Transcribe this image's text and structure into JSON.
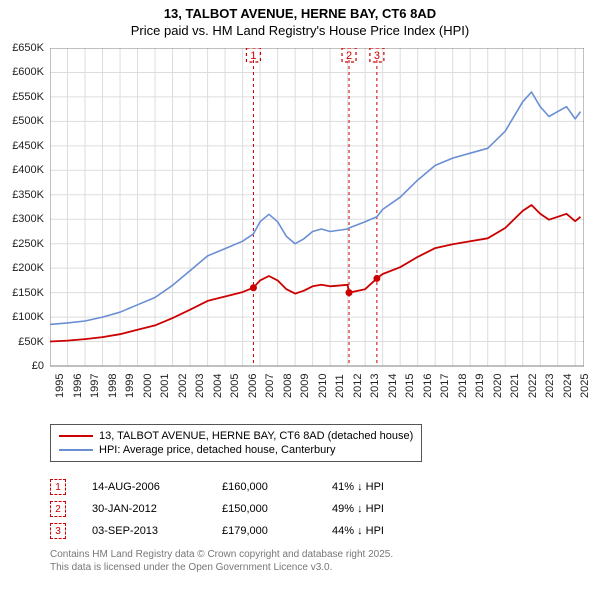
{
  "title": {
    "line1": "13, TALBOT AVENUE, HERNE BAY, CT6 8AD",
    "line2": "Price paid vs. HM Land Registry's House Price Index (HPI)"
  },
  "chart": {
    "type": "line",
    "background_color": "#ffffff",
    "grid_color": "#dddddd",
    "axis_color": "#808080",
    "y_axis": {
      "min": 0,
      "max": 650000,
      "ticks": [
        0,
        50000,
        100000,
        150000,
        200000,
        250000,
        300000,
        350000,
        400000,
        450000,
        500000,
        550000,
        600000,
        650000
      ],
      "tick_labels": [
        "£0",
        "£50K",
        "£100K",
        "£150K",
        "£200K",
        "£250K",
        "£300K",
        "£350K",
        "£400K",
        "£450K",
        "£500K",
        "£550K",
        "£600K",
        "£650K"
      ]
    },
    "x_axis": {
      "min": 1995,
      "max": 2025.5,
      "ticks": [
        1995,
        1996,
        1997,
        1998,
        1999,
        2000,
        2001,
        2002,
        2003,
        2004,
        2005,
        2006,
        2007,
        2008,
        2009,
        2010,
        2011,
        2012,
        2013,
        2014,
        2015,
        2016,
        2017,
        2018,
        2019,
        2020,
        2021,
        2022,
        2023,
        2024,
        2025
      ],
      "tick_labels": [
        "1995",
        "1996",
        "1997",
        "1998",
        "1999",
        "2000",
        "2001",
        "2002",
        "2003",
        "2004",
        "2005",
        "2006",
        "2007",
        "2008",
        "2009",
        "2010",
        "2011",
        "2012",
        "2013",
        "2014",
        "2015",
        "2016",
        "2017",
        "2018",
        "2019",
        "2020",
        "2021",
        "2022",
        "2023",
        "2024",
        "2025"
      ]
    },
    "series": [
      {
        "name": "hpi",
        "label": "HPI: Average price, detached house, Canterbury",
        "color": "#6a8fd4",
        "line_width": 1.6,
        "points": [
          [
            1995,
            85000
          ],
          [
            1996,
            88000
          ],
          [
            1997,
            92000
          ],
          [
            1998,
            100000
          ],
          [
            1999,
            110000
          ],
          [
            2000,
            125000
          ],
          [
            2001,
            140000
          ],
          [
            2002,
            165000
          ],
          [
            2003,
            195000
          ],
          [
            2004,
            225000
          ],
          [
            2005,
            240000
          ],
          [
            2006,
            255000
          ],
          [
            2006.62,
            270000
          ],
          [
            2007,
            295000
          ],
          [
            2007.5,
            310000
          ],
          [
            2008,
            295000
          ],
          [
            2008.5,
            265000
          ],
          [
            2009,
            250000
          ],
          [
            2009.5,
            260000
          ],
          [
            2010,
            275000
          ],
          [
            2010.5,
            280000
          ],
          [
            2011,
            275000
          ],
          [
            2012,
            280000
          ],
          [
            2012.08,
            282000
          ],
          [
            2013,
            295000
          ],
          [
            2013.67,
            305000
          ],
          [
            2014,
            320000
          ],
          [
            2015,
            345000
          ],
          [
            2016,
            380000
          ],
          [
            2017,
            410000
          ],
          [
            2018,
            425000
          ],
          [
            2019,
            435000
          ],
          [
            2020,
            445000
          ],
          [
            2021,
            480000
          ],
          [
            2022,
            540000
          ],
          [
            2022.5,
            560000
          ],
          [
            2023,
            530000
          ],
          [
            2023.5,
            510000
          ],
          [
            2024,
            520000
          ],
          [
            2024.5,
            530000
          ],
          [
            2025,
            505000
          ],
          [
            2025.3,
            520000
          ]
        ]
      },
      {
        "name": "price_paid",
        "label": "13, TALBOT AVENUE, HERNE BAY, CT6 8AD (detached house)",
        "color": "#cc0000",
        "line_width": 1.8,
        "points": [
          [
            1995,
            50000
          ],
          [
            1996,
            52000
          ],
          [
            1997,
            55000
          ],
          [
            1998,
            59000
          ],
          [
            1999,
            65000
          ],
          [
            2000,
            74000
          ],
          [
            2001,
            83000
          ],
          [
            2002,
            98000
          ],
          [
            2003,
            115000
          ],
          [
            2004,
            133000
          ],
          [
            2005,
            142000
          ],
          [
            2006,
            151000
          ],
          [
            2006.62,
            160000
          ],
          [
            2007,
            175000
          ],
          [
            2007.5,
            184000
          ],
          [
            2008,
            175000
          ],
          [
            2008.5,
            157000
          ],
          [
            2009,
            148000
          ],
          [
            2009.5,
            154000
          ],
          [
            2010,
            163000
          ],
          [
            2010.5,
            166000
          ],
          [
            2011,
            163000
          ],
          [
            2012,
            166000
          ],
          [
            2012.08,
            150000
          ],
          [
            2013,
            157000
          ],
          [
            2013.67,
            179000
          ],
          [
            2014,
            188000
          ],
          [
            2015,
            202000
          ],
          [
            2016,
            223000
          ],
          [
            2017,
            241000
          ],
          [
            2018,
            249000
          ],
          [
            2019,
            255000
          ],
          [
            2020,
            261000
          ],
          [
            2021,
            282000
          ],
          [
            2022,
            317000
          ],
          [
            2022.5,
            329000
          ],
          [
            2023,
            311000
          ],
          [
            2023.5,
            299000
          ],
          [
            2024,
            305000
          ],
          [
            2024.5,
            311000
          ],
          [
            2025,
            296000
          ],
          [
            2025.3,
            305000
          ]
        ]
      }
    ],
    "sale_markers": [
      {
        "num": "1",
        "year": 2006.62,
        "value": 160000
      },
      {
        "num": "2",
        "year": 2012.08,
        "value": 150000
      },
      {
        "num": "3",
        "year": 2013.67,
        "value": 179000
      }
    ],
    "marker_color": "#cc0000"
  },
  "legend": {
    "items": [
      {
        "color": "#cc0000",
        "label": "13, TALBOT AVENUE, HERNE BAY, CT6 8AD (detached house)"
      },
      {
        "color": "#6a8fd4",
        "label": "HPI: Average price, detached house, Canterbury"
      }
    ]
  },
  "sales": [
    {
      "num": "1",
      "date": "14-AUG-2006",
      "price": "£160,000",
      "delta": "41% ↓ HPI"
    },
    {
      "num": "2",
      "date": "30-JAN-2012",
      "price": "£150,000",
      "delta": "49% ↓ HPI"
    },
    {
      "num": "3",
      "date": "03-SEP-2013",
      "price": "£179,000",
      "delta": "44% ↓ HPI"
    }
  ],
  "footer": {
    "line1": "Contains HM Land Registry data © Crown copyright and database right 2025.",
    "line2": "This data is licensed under the Open Government Licence v3.0."
  }
}
